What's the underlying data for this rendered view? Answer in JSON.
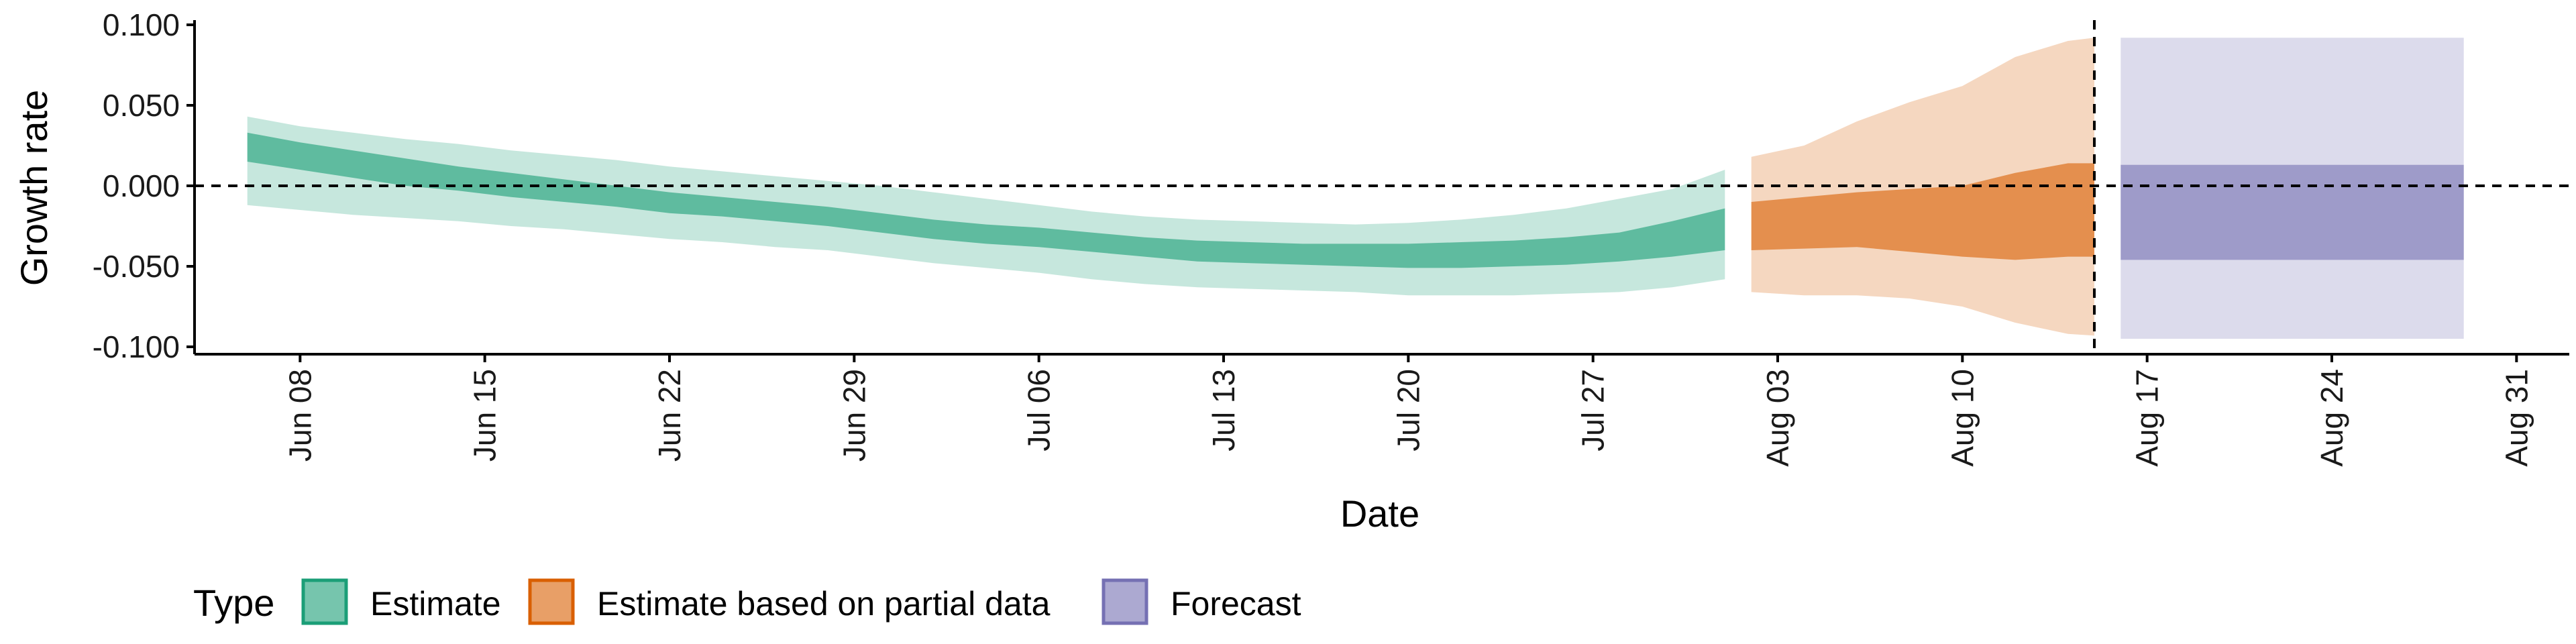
{
  "chart_data": {
    "type": "area",
    "xlabel": "Date",
    "ylabel": "Growth rate",
    "ylim": [
      -0.1,
      0.1
    ],
    "xlim": [
      "2020-06-04",
      "2020-09-02"
    ],
    "x_ticks": [
      "2020-06-08",
      "2020-06-15",
      "2020-06-22",
      "2020-06-29",
      "2020-07-06",
      "2020-07-13",
      "2020-07-20",
      "2020-07-27",
      "2020-08-03",
      "2020-08-10",
      "2020-08-17",
      "2020-08-24",
      "2020-08-31"
    ],
    "x_tick_labels": [
      "Jun 08",
      "Jun 15",
      "Jun 22",
      "Jun 29",
      "Jul 06",
      "Jul 13",
      "Jul 20",
      "Jul 27",
      "Aug 03",
      "Aug 10",
      "Aug 17",
      "Aug 24",
      "Aug 31"
    ],
    "y_ticks": [
      0.1,
      0.05,
      0.0,
      -0.05,
      -0.1
    ],
    "y_tick_labels": [
      "0.100",
      "0.050",
      "0.000",
      "-0.050",
      "-0.100"
    ],
    "hline": 0.0,
    "vline": "2020-08-15",
    "grid": false,
    "legend": {
      "title": "Type",
      "position": "bottom",
      "items": [
        {
          "label": "Estimate",
          "color": "#1B9E77"
        },
        {
          "label": "Estimate based on partial data",
          "color": "#D95F02"
        },
        {
          "label": "Forecast",
          "color": "#7570B3"
        }
      ]
    },
    "series": [
      {
        "name": "Estimate",
        "color": "#1B9E77",
        "x": [
          "2020-06-06",
          "2020-06-08",
          "2020-06-10",
          "2020-06-12",
          "2020-06-14",
          "2020-06-16",
          "2020-06-18",
          "2020-06-20",
          "2020-06-22",
          "2020-06-24",
          "2020-06-26",
          "2020-06-28",
          "2020-06-30",
          "2020-07-02",
          "2020-07-04",
          "2020-07-06",
          "2020-07-08",
          "2020-07-10",
          "2020-07-12",
          "2020-07-14",
          "2020-07-16",
          "2020-07-18",
          "2020-07-20",
          "2020-07-22",
          "2020-07-24",
          "2020-07-26",
          "2020-07-28",
          "2020-07-30",
          "2020-08-01"
        ],
        "lower90": [
          -0.012,
          -0.015,
          -0.018,
          -0.02,
          -0.022,
          -0.025,
          -0.027,
          -0.03,
          -0.033,
          -0.035,
          -0.038,
          -0.04,
          -0.044,
          -0.048,
          -0.051,
          -0.054,
          -0.058,
          -0.061,
          -0.063,
          -0.064,
          -0.065,
          -0.066,
          -0.068,
          -0.068,
          -0.068,
          -0.067,
          -0.066,
          -0.063,
          -0.058
        ],
        "lower50": [
          0.015,
          0.01,
          0.005,
          0.0,
          -0.003,
          -0.007,
          -0.01,
          -0.013,
          -0.017,
          -0.019,
          -0.022,
          -0.025,
          -0.029,
          -0.033,
          -0.036,
          -0.038,
          -0.041,
          -0.044,
          -0.047,
          -0.048,
          -0.049,
          -0.05,
          -0.051,
          -0.051,
          -0.05,
          -0.049,
          -0.047,
          -0.044,
          -0.04
        ],
        "upper50": [
          0.033,
          0.027,
          0.022,
          0.017,
          0.012,
          0.008,
          0.004,
          0.0,
          -0.004,
          -0.007,
          -0.01,
          -0.013,
          -0.017,
          -0.021,
          -0.024,
          -0.026,
          -0.029,
          -0.032,
          -0.034,
          -0.035,
          -0.036,
          -0.036,
          -0.036,
          -0.035,
          -0.034,
          -0.032,
          -0.029,
          -0.022,
          -0.014
        ],
        "upper90": [
          0.043,
          0.037,
          0.033,
          0.029,
          0.026,
          0.022,
          0.019,
          0.016,
          0.012,
          0.009,
          0.006,
          0.003,
          0.0,
          -0.004,
          -0.008,
          -0.012,
          -0.016,
          -0.019,
          -0.021,
          -0.022,
          -0.023,
          -0.024,
          -0.023,
          -0.021,
          -0.018,
          -0.014,
          -0.008,
          -0.002,
          0.01
        ]
      },
      {
        "name": "Estimate based on partial data",
        "color": "#D95F02",
        "x": [
          "2020-08-02",
          "2020-08-04",
          "2020-08-06",
          "2020-08-08",
          "2020-08-10",
          "2020-08-12",
          "2020-08-14",
          "2020-08-15"
        ],
        "lower90": [
          -0.066,
          -0.068,
          -0.068,
          -0.07,
          -0.075,
          -0.085,
          -0.092,
          -0.093
        ],
        "lower50": [
          -0.04,
          -0.039,
          -0.038,
          -0.041,
          -0.044,
          -0.046,
          -0.044,
          -0.044
        ],
        "upper50": [
          -0.01,
          -0.007,
          -0.004,
          -0.002,
          0.0,
          0.008,
          0.014,
          0.014
        ],
        "upper90": [
          0.018,
          0.025,
          0.04,
          0.052,
          0.062,
          0.08,
          0.09,
          0.092
        ]
      },
      {
        "name": "Forecast",
        "color": "#7570B3",
        "x": [
          "2020-08-16",
          "2020-08-29"
        ],
        "lower90": [
          -0.095,
          -0.095
        ],
        "lower50": [
          -0.046,
          -0.046
        ],
        "upper50": [
          0.013,
          0.013
        ],
        "upper90": [
          0.092,
          0.092
        ]
      }
    ]
  }
}
